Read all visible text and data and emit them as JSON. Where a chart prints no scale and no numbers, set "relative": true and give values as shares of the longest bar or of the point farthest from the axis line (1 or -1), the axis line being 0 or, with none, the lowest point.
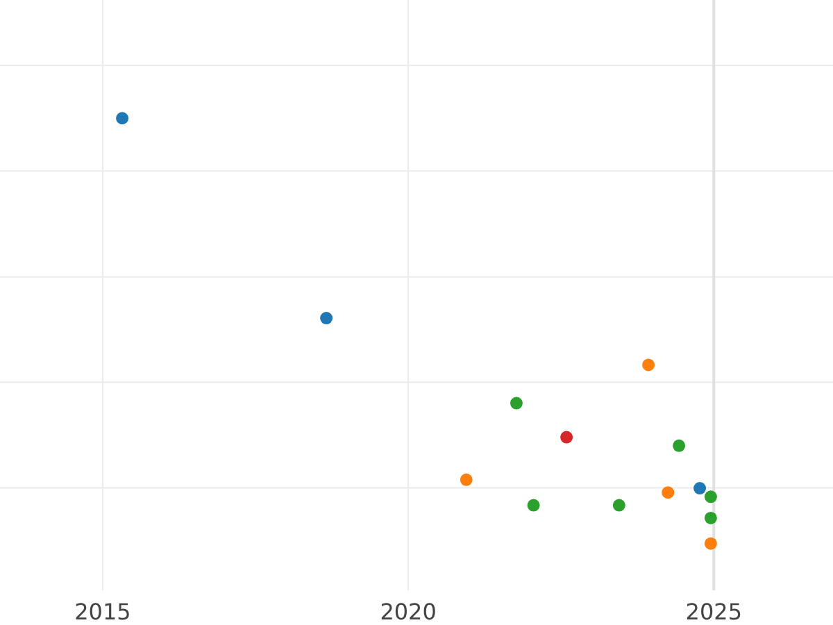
{
  "chart_data": {
    "type": "scatter",
    "relative": true,
    "xlim": [
      2013.32,
      2026.95
    ],
    "xticks": [
      2015,
      2020,
      2025
    ],
    "grid": true,
    "marker": "circle",
    "ref_lines": [
      {
        "axis": "x",
        "value": 2025,
        "color": "#e0e0e0"
      }
    ],
    "series": [
      {
        "color": "#1f77b4",
        "x": [
          2015.32,
          2018.66,
          2024.77
        ],
        "values": [
          1.0,
          0.53,
          0.13
        ]
      },
      {
        "color": "#ff7f0e",
        "x": [
          2023.93,
          2020.95,
          2024.25,
          2024.95
        ],
        "values": [
          0.42,
          0.15,
          0.12,
          0.0
        ]
      },
      {
        "color": "#2ca02c",
        "x": [
          2021.77,
          2024.43,
          2022.05,
          2023.45,
          2024.95,
          2024.95
        ],
        "values": [
          0.33,
          0.23,
          0.09,
          0.09,
          0.11,
          0.06
        ]
      },
      {
        "color": "#d62728",
        "x": [
          2022.59
        ],
        "values": [
          0.25
        ]
      }
    ]
  }
}
